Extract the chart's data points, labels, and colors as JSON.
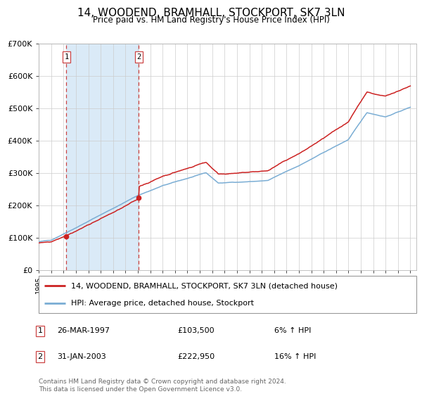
{
  "title": "14, WOODEND, BRAMHALL, STOCKPORT, SK7 3LN",
  "subtitle": "Price paid vs. HM Land Registry's House Price Index (HPI)",
  "ylim": [
    0,
    700000
  ],
  "yticks": [
    0,
    100000,
    200000,
    300000,
    400000,
    500000,
    600000,
    700000
  ],
  "ytick_labels": [
    "£0",
    "£100K",
    "£200K",
    "£300K",
    "£400K",
    "£500K",
    "£600K",
    "£700K"
  ],
  "sale1_date_num": 1997.23,
  "sale1_price": 103500,
  "sale2_date_num": 2003.08,
  "sale2_price": 222950,
  "hpi_color": "#7aadd4",
  "price_color": "#cc2222",
  "shade_color": "#daeaf7",
  "dashed_color": "#cc4444",
  "background_color": "#ffffff",
  "grid_color": "#cccccc",
  "legend_line1": "14, WOODEND, BRAMHALL, STOCKPORT, SK7 3LN (detached house)",
  "legend_line2": "HPI: Average price, detached house, Stockport",
  "table_row1": [
    "1",
    "26-MAR-1997",
    "£103,500",
    "6% ↑ HPI"
  ],
  "table_row2": [
    "2",
    "31-JAN-2003",
    "£222,950",
    "16% ↑ HPI"
  ],
  "footer": "Contains HM Land Registry data © Crown copyright and database right 2024.\nThis data is licensed under the Open Government Licence v3.0."
}
